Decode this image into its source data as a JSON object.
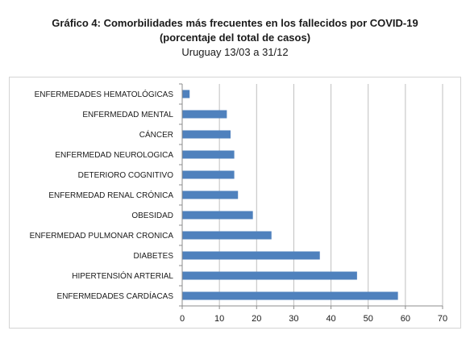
{
  "chart_data": {
    "type": "bar",
    "orientation": "horizontal",
    "title": "Gráfico 4: Comorbilidades más frecuentes en los fallecidos por COVID-19",
    "title_line2": "(porcentaje del total de casos)",
    "subtitle": "Uruguay 13/03 a 31/12",
    "categories": [
      "ENFERMEDADES HEMATOLÓGICAS",
      "ENFERMEDAD MENTAL",
      "CÁNCER",
      "ENFERMEDAD NEUROLOGICA",
      "DETERIORO COGNITIVO",
      "ENFERMEDAD RENAL CRÓNICA",
      "OBESIDAD",
      "ENFERMEDAD PULMONAR CRONICA",
      "DIABETES",
      "HIPERTENSIÓN ARTERIAL",
      "ENFERMEDADES CARDÍACAS"
    ],
    "values": [
      2,
      12,
      13,
      14,
      14,
      15,
      19,
      24,
      37,
      47,
      58
    ],
    "xlim": [
      0,
      70
    ],
    "xticks": [
      0,
      10,
      20,
      30,
      40,
      50,
      60,
      70
    ],
    "grid": "vertical",
    "bar_color": "#4f81bd",
    "grid_color": "#bfbfbf",
    "axis_color": "#8c8c8c"
  }
}
